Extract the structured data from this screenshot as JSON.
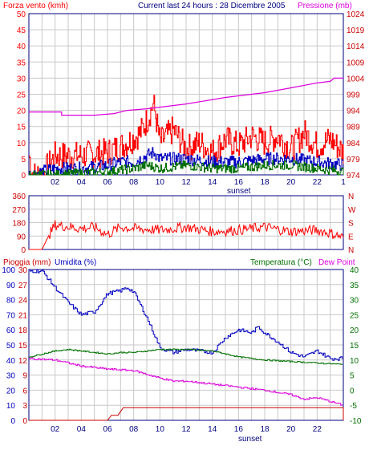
{
  "colors": {
    "red": "#ff0000",
    "blue": "#0000c0",
    "green": "#007000",
    "magenta": "#dd00dd",
    "dark_red": "#cc0000",
    "axis_text": "#000080",
    "grid": "#c8c8c8"
  },
  "header": {
    "wind_title": "Forza vento (kmh)",
    "center_title": "Current last 24 hours : 28 Dicembre 2005",
    "pressure_title": "Pressione (mb)"
  },
  "x_axis": {
    "ticks": [
      "02",
      "04",
      "06",
      "08",
      "10",
      "12",
      "14",
      "16",
      "18",
      "20",
      "22",
      "1"
    ],
    "sunset_label": "sunset"
  },
  "panel3": {
    "rain_title": "Pioggia (mm)",
    "humidity_title": "Umidita (%)",
    "temp_title": "Temperatura (°C)",
    "dew_title": "Dew Point",
    "ticks": [
      "02",
      "04",
      "06",
      "08",
      "10",
      "12",
      "14",
      "16",
      "18",
      "20",
      "22"
    ]
  },
  "chart_data": [
    {
      "type": "line",
      "title": "Forza vento (kmh) / Pressione (mb)",
      "x": "hours over the last 24 hours",
      "wind_ylim": [
        0,
        50
      ],
      "wind_ticks": [
        "50",
        "45",
        "40",
        "35",
        "30",
        "25",
        "20",
        "15",
        "10",
        "5",
        "0"
      ],
      "pressure_ylim": [
        974,
        1024
      ],
      "pressure_ticks": [
        "1024",
        "1019",
        "1014",
        "1009",
        "1004",
        "999",
        "994",
        "989",
        "984",
        "979",
        "974"
      ],
      "series": [
        {
          "name": "Pressione",
          "color": "#dd00dd",
          "points": [
            [
              0,
              993.5
            ],
            [
              2.5,
              993.5
            ],
            [
              2.5,
              992.5
            ],
            [
              5,
              992.5
            ],
            [
              6.5,
              993
            ],
            [
              7.5,
              994
            ],
            [
              9,
              994.5
            ],
            [
              12,
              996
            ],
            [
              15,
              998
            ],
            [
              18,
              999.5
            ],
            [
              20,
              1001
            ],
            [
              22,
              1002.5
            ],
            [
              23,
              1003
            ],
            [
              23.3,
              1004
            ],
            [
              24,
              1004
            ]
          ]
        },
        {
          "name": "gust",
          "color": "#ff0000",
          "points": [
            [
              0,
              6
            ],
            [
              0.3,
              0
            ],
            [
              1,
              0
            ],
            [
              2,
              6
            ],
            [
              4,
              6
            ],
            [
              6,
              7
            ],
            [
              7.5,
              10
            ],
            [
              8.5,
              13
            ],
            [
              9,
              17
            ],
            [
              9.3,
              20
            ],
            [
              9.5,
              22
            ],
            [
              10,
              10
            ],
            [
              11,
              14
            ],
            [
              12,
              8
            ],
            [
              13,
              10
            ],
            [
              14,
              7
            ],
            [
              15,
              11
            ],
            [
              16,
              9
            ],
            [
              17,
              12
            ],
            [
              18,
              10
            ],
            [
              19,
              12
            ],
            [
              20,
              8
            ],
            [
              21,
              13
            ],
            [
              22,
              9
            ],
            [
              23,
              11
            ],
            [
              24,
              7
            ]
          ]
        },
        {
          "name": "average",
          "color": "#0000c0",
          "points": [
            [
              0,
              0
            ],
            [
              2,
              2
            ],
            [
              4,
              2
            ],
            [
              6,
              3
            ],
            [
              7,
              4
            ],
            [
              8,
              4
            ],
            [
              9,
              6
            ],
            [
              9.5,
              7
            ],
            [
              10,
              5
            ],
            [
              12,
              5
            ],
            [
              14,
              4
            ],
            [
              16,
              4
            ],
            [
              18,
              5
            ],
            [
              20,
              5
            ],
            [
              22,
              4
            ],
            [
              24,
              3
            ]
          ]
        },
        {
          "name": "min",
          "color": "#007000",
          "points": [
            [
              0,
              0
            ],
            [
              2,
              0
            ],
            [
              6,
              1
            ],
            [
              8,
              2
            ],
            [
              9,
              3
            ],
            [
              10,
              2
            ],
            [
              12,
              3
            ],
            [
              14,
              2
            ],
            [
              16,
              2
            ],
            [
              18,
              3
            ],
            [
              20,
              3
            ],
            [
              22,
              2
            ],
            [
              24,
              1
            ]
          ]
        }
      ]
    },
    {
      "type": "line",
      "title": "Wind direction",
      "ylim": [
        0,
        360
      ],
      "left_ticks": [
        "360",
        "270",
        "180",
        "90",
        "0"
      ],
      "right_ticks": [
        "N",
        "W",
        "S",
        "E",
        "N"
      ],
      "series": [
        {
          "name": "direction",
          "color": "#ff0000",
          "points": [
            [
              0,
              0
            ],
            [
              1,
              0
            ],
            [
              1.5,
              90
            ],
            [
              2,
              165
            ],
            [
              4,
              140
            ],
            [
              5,
              150
            ],
            [
              6,
              100
            ],
            [
              7,
              150
            ],
            [
              8,
              140
            ],
            [
              10,
              130
            ],
            [
              12,
              150
            ],
            [
              14,
              120
            ],
            [
              16,
              130
            ],
            [
              18,
              150
            ],
            [
              20,
              120
            ],
            [
              22,
              130
            ],
            [
              23,
              110
            ],
            [
              24,
              80
            ]
          ]
        }
      ]
    },
    {
      "type": "line",
      "title": "Pioggia (mm) / Umidita (%) / Temperatura (°C) / Dew Point",
      "rain_ylim": [
        0,
        30
      ],
      "rain_ticks": [
        "30",
        "27",
        "24",
        "21",
        "18",
        "15",
        "12",
        "9",
        "6",
        "3",
        "0"
      ],
      "humidity_ticks": [
        "100",
        "90",
        "80",
        "70",
        "60",
        "50",
        "40",
        "30",
        "20",
        "10",
        "0"
      ],
      "temp_ylim": [
        -10,
        40
      ],
      "temp_ticks": [
        "40",
        "35",
        "30",
        "25",
        "20",
        "15",
        "10",
        "5",
        "0",
        "-5",
        "-10"
      ],
      "series": [
        {
          "name": "Umidita",
          "color": "#0000c0",
          "points": [
            [
              0,
              99
            ],
            [
              1,
              99
            ],
            [
              2,
              88
            ],
            [
              3,
              78
            ],
            [
              4,
              70
            ],
            [
              5,
              72
            ],
            [
              6,
              84
            ],
            [
              7,
              86
            ],
            [
              7.5,
              88
            ],
            [
              8,
              85
            ],
            [
              9,
              68
            ],
            [
              10,
              48
            ],
            [
              11,
              45
            ],
            [
              12,
              47
            ],
            [
              13,
              46
            ],
            [
              14,
              45
            ],
            [
              15,
              55
            ],
            [
              16,
              60
            ],
            [
              17,
              58
            ],
            [
              17.5,
              62
            ],
            [
              18,
              58
            ],
            [
              19,
              52
            ],
            [
              20,
              45
            ],
            [
              21,
              42
            ],
            [
              22,
              46
            ],
            [
              23,
              41
            ],
            [
              24,
              41
            ]
          ]
        },
        {
          "name": "Temperatura",
          "color": "#007000",
          "points": [
            [
              0,
              11
            ],
            [
              2,
              13
            ],
            [
              3,
              13.5
            ],
            [
              4,
              13
            ],
            [
              6,
              12
            ],
            [
              7,
              12.5
            ],
            [
              8,
              12.5
            ],
            [
              10,
              13.5
            ],
            [
              12,
              13.5
            ],
            [
              14,
              13
            ],
            [
              16,
              11
            ],
            [
              18,
              10
            ],
            [
              20,
              9.5
            ],
            [
              22,
              9
            ],
            [
              24,
              8.5
            ]
          ]
        },
        {
          "name": "Dew Point",
          "color": "#dd00dd",
          "points": [
            [
              0,
              10.5
            ],
            [
              2,
              10
            ],
            [
              4,
              8
            ],
            [
              6,
              7
            ],
            [
              8,
              6.5
            ],
            [
              10,
              4
            ],
            [
              11,
              3
            ],
            [
              12,
              3
            ],
            [
              14,
              2
            ],
            [
              16,
              1
            ],
            [
              18,
              0
            ],
            [
              20,
              -1.5
            ],
            [
              21,
              -3
            ],
            [
              22,
              -2.5
            ],
            [
              24,
              -5
            ]
          ]
        },
        {
          "name": "Pioggia",
          "color": "#cc0000",
          "points": [
            [
              0,
              0
            ],
            [
              6,
              0
            ],
            [
              6.3,
              1
            ],
            [
              6.8,
              1
            ],
            [
              7.2,
              2.5
            ],
            [
              24,
              2.5
            ],
            [
              24,
              0
            ]
          ]
        }
      ]
    }
  ]
}
